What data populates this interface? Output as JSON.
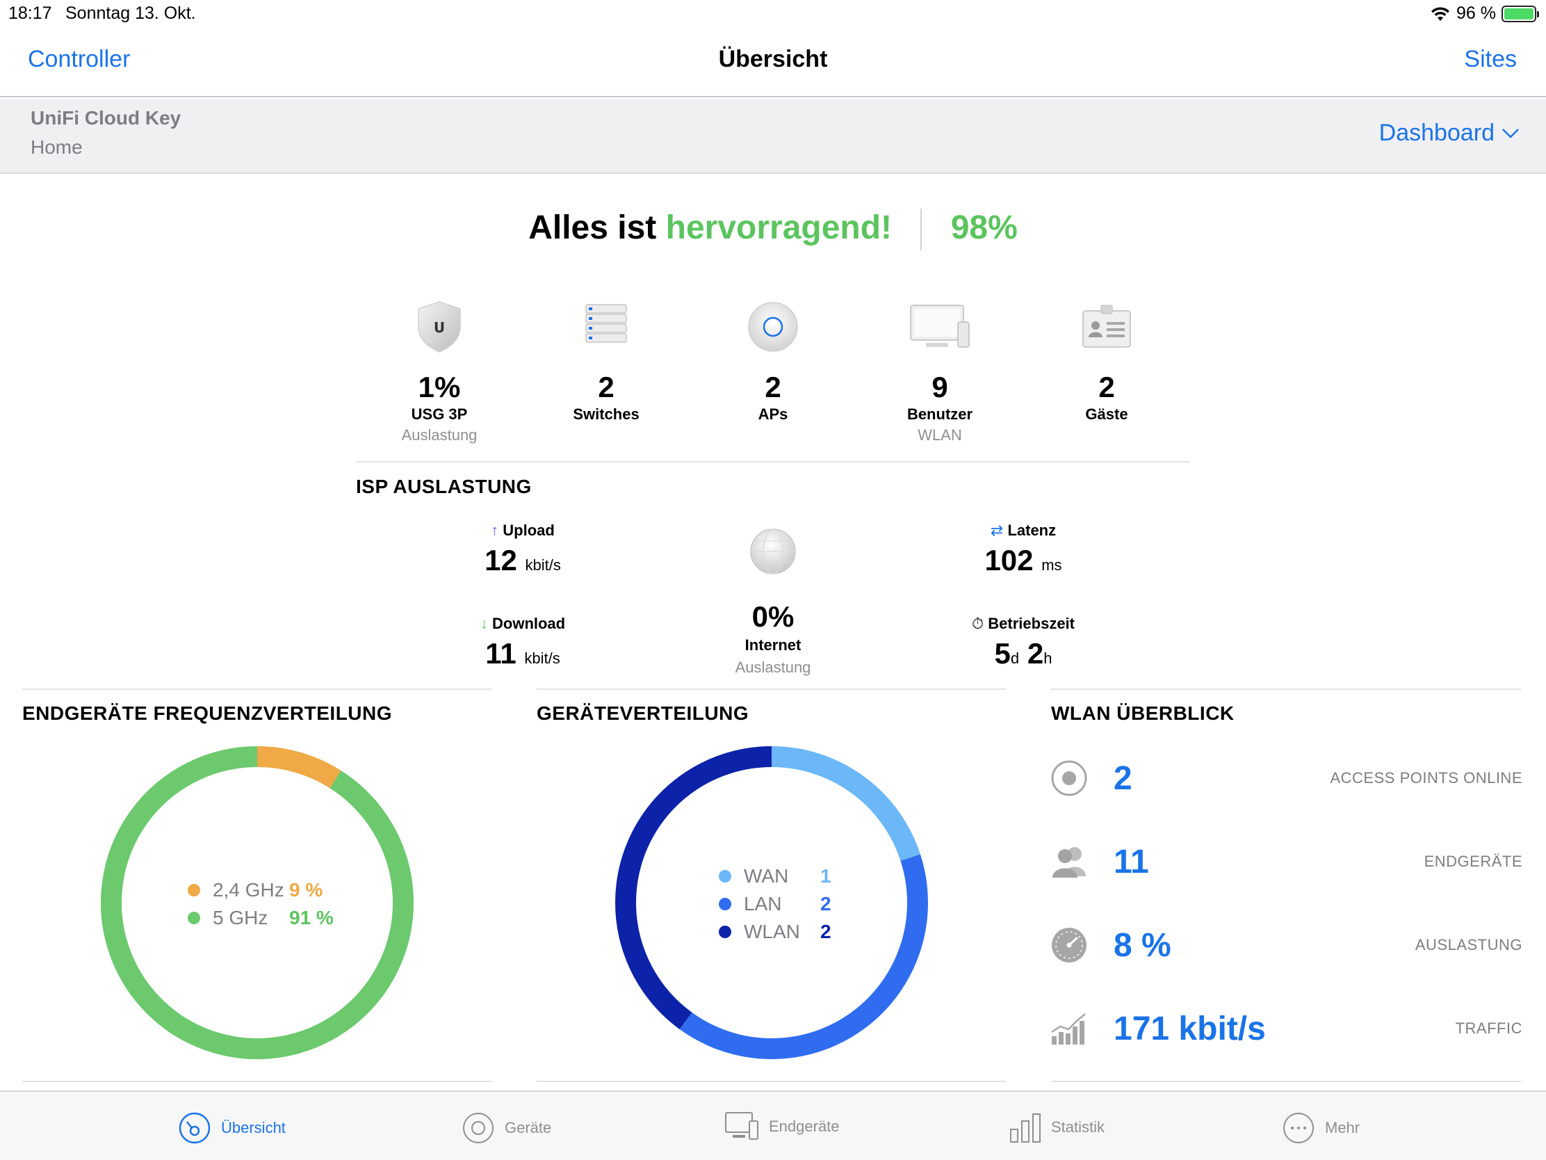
{
  "status_bar": {
    "time": "18:17",
    "date": "Sonntag 13. Okt.",
    "battery": "96 %"
  },
  "nav": {
    "left": "Controller",
    "title": "Übersicht",
    "right": "Sites"
  },
  "site": {
    "name": "UniFi Cloud Key",
    "subtitle": "Home",
    "view": "Dashboard"
  },
  "headline": {
    "prefix": "Alles ist",
    "highlight": "hervorragend!",
    "score": "98%"
  },
  "devices": [
    {
      "icon": "shield-icon",
      "value": "1%",
      "label": "USG 3P",
      "sub": "Auslastung"
    },
    {
      "icon": "switch-icon",
      "value": "2",
      "label": "Switches",
      "sub": ""
    },
    {
      "icon": "access-point-icon",
      "value": "2",
      "label": "APs",
      "sub": ""
    },
    {
      "icon": "monitor-icon",
      "value": "9",
      "label": "Benutzer",
      "sub": "WLAN"
    },
    {
      "icon": "guest-badge-icon",
      "value": "2",
      "label": "Gäste",
      "sub": ""
    }
  ],
  "isp": {
    "title": "ISP AUSLASTUNG",
    "upload_label": "Upload",
    "upload_value": "12",
    "upload_unit": "kbit/s",
    "download_label": "Download",
    "download_value": "11",
    "download_unit": "kbit/s",
    "internet_value": "0%",
    "internet_label": "Internet",
    "internet_sub": "Auslastung",
    "latency_label": "Latenz",
    "latency_value": "102",
    "latency_unit": "ms",
    "uptime_label": "Betriebszeit",
    "uptime_days": "5",
    "uptime_d_unit": "d",
    "uptime_hours": "2",
    "uptime_h_unit": "h"
  },
  "freq": {
    "title": "ENDGERÄTE FREQUENZVERTEILUNG",
    "items": [
      {
        "name": "2,4 GHz",
        "pct": "9 %",
        "value": 9,
        "color": "#efa946"
      },
      {
        "name": "5 GHz",
        "pct": "91 %",
        "value": 91,
        "color": "#6cc96d"
      }
    ]
  },
  "devdist": {
    "title": "GERÄTEVERTEILUNG",
    "items": [
      {
        "name": "WAN",
        "count": "1",
        "value": 1,
        "color": "#6bb7f7"
      },
      {
        "name": "LAN",
        "count": "2",
        "value": 2,
        "color": "#2f6cf0"
      },
      {
        "name": "WLAN",
        "count": "2",
        "value": 2,
        "color": "#0c22a8"
      }
    ]
  },
  "wlan": {
    "title": "WLAN ÜBERBLICK",
    "rows": [
      {
        "icon": "target-icon",
        "value": "2",
        "label": "ACCESS POINTS ONLINE"
      },
      {
        "icon": "users-icon",
        "value": "11",
        "label": "ENDGERÄTE"
      },
      {
        "icon": "gauge-icon",
        "value": "8 %",
        "label": "AUSLASTUNG"
      },
      {
        "icon": "traffic-chart-icon",
        "value": "171 kbit/s",
        "label": "TRAFFIC"
      }
    ]
  },
  "tabs": [
    {
      "label": "Übersicht",
      "icon": "dashboard-icon",
      "active": true
    },
    {
      "label": "Geräte",
      "icon": "devices-icon",
      "active": false
    },
    {
      "label": "Endgeräte",
      "icon": "clients-icon",
      "active": false
    },
    {
      "label": "Statistik",
      "icon": "statistics-icon",
      "active": false
    },
    {
      "label": "Mehr",
      "icon": "more-icon",
      "active": false
    }
  ],
  "colors": {
    "accent": "#1a73e8",
    "good": "#5cc45f"
  }
}
